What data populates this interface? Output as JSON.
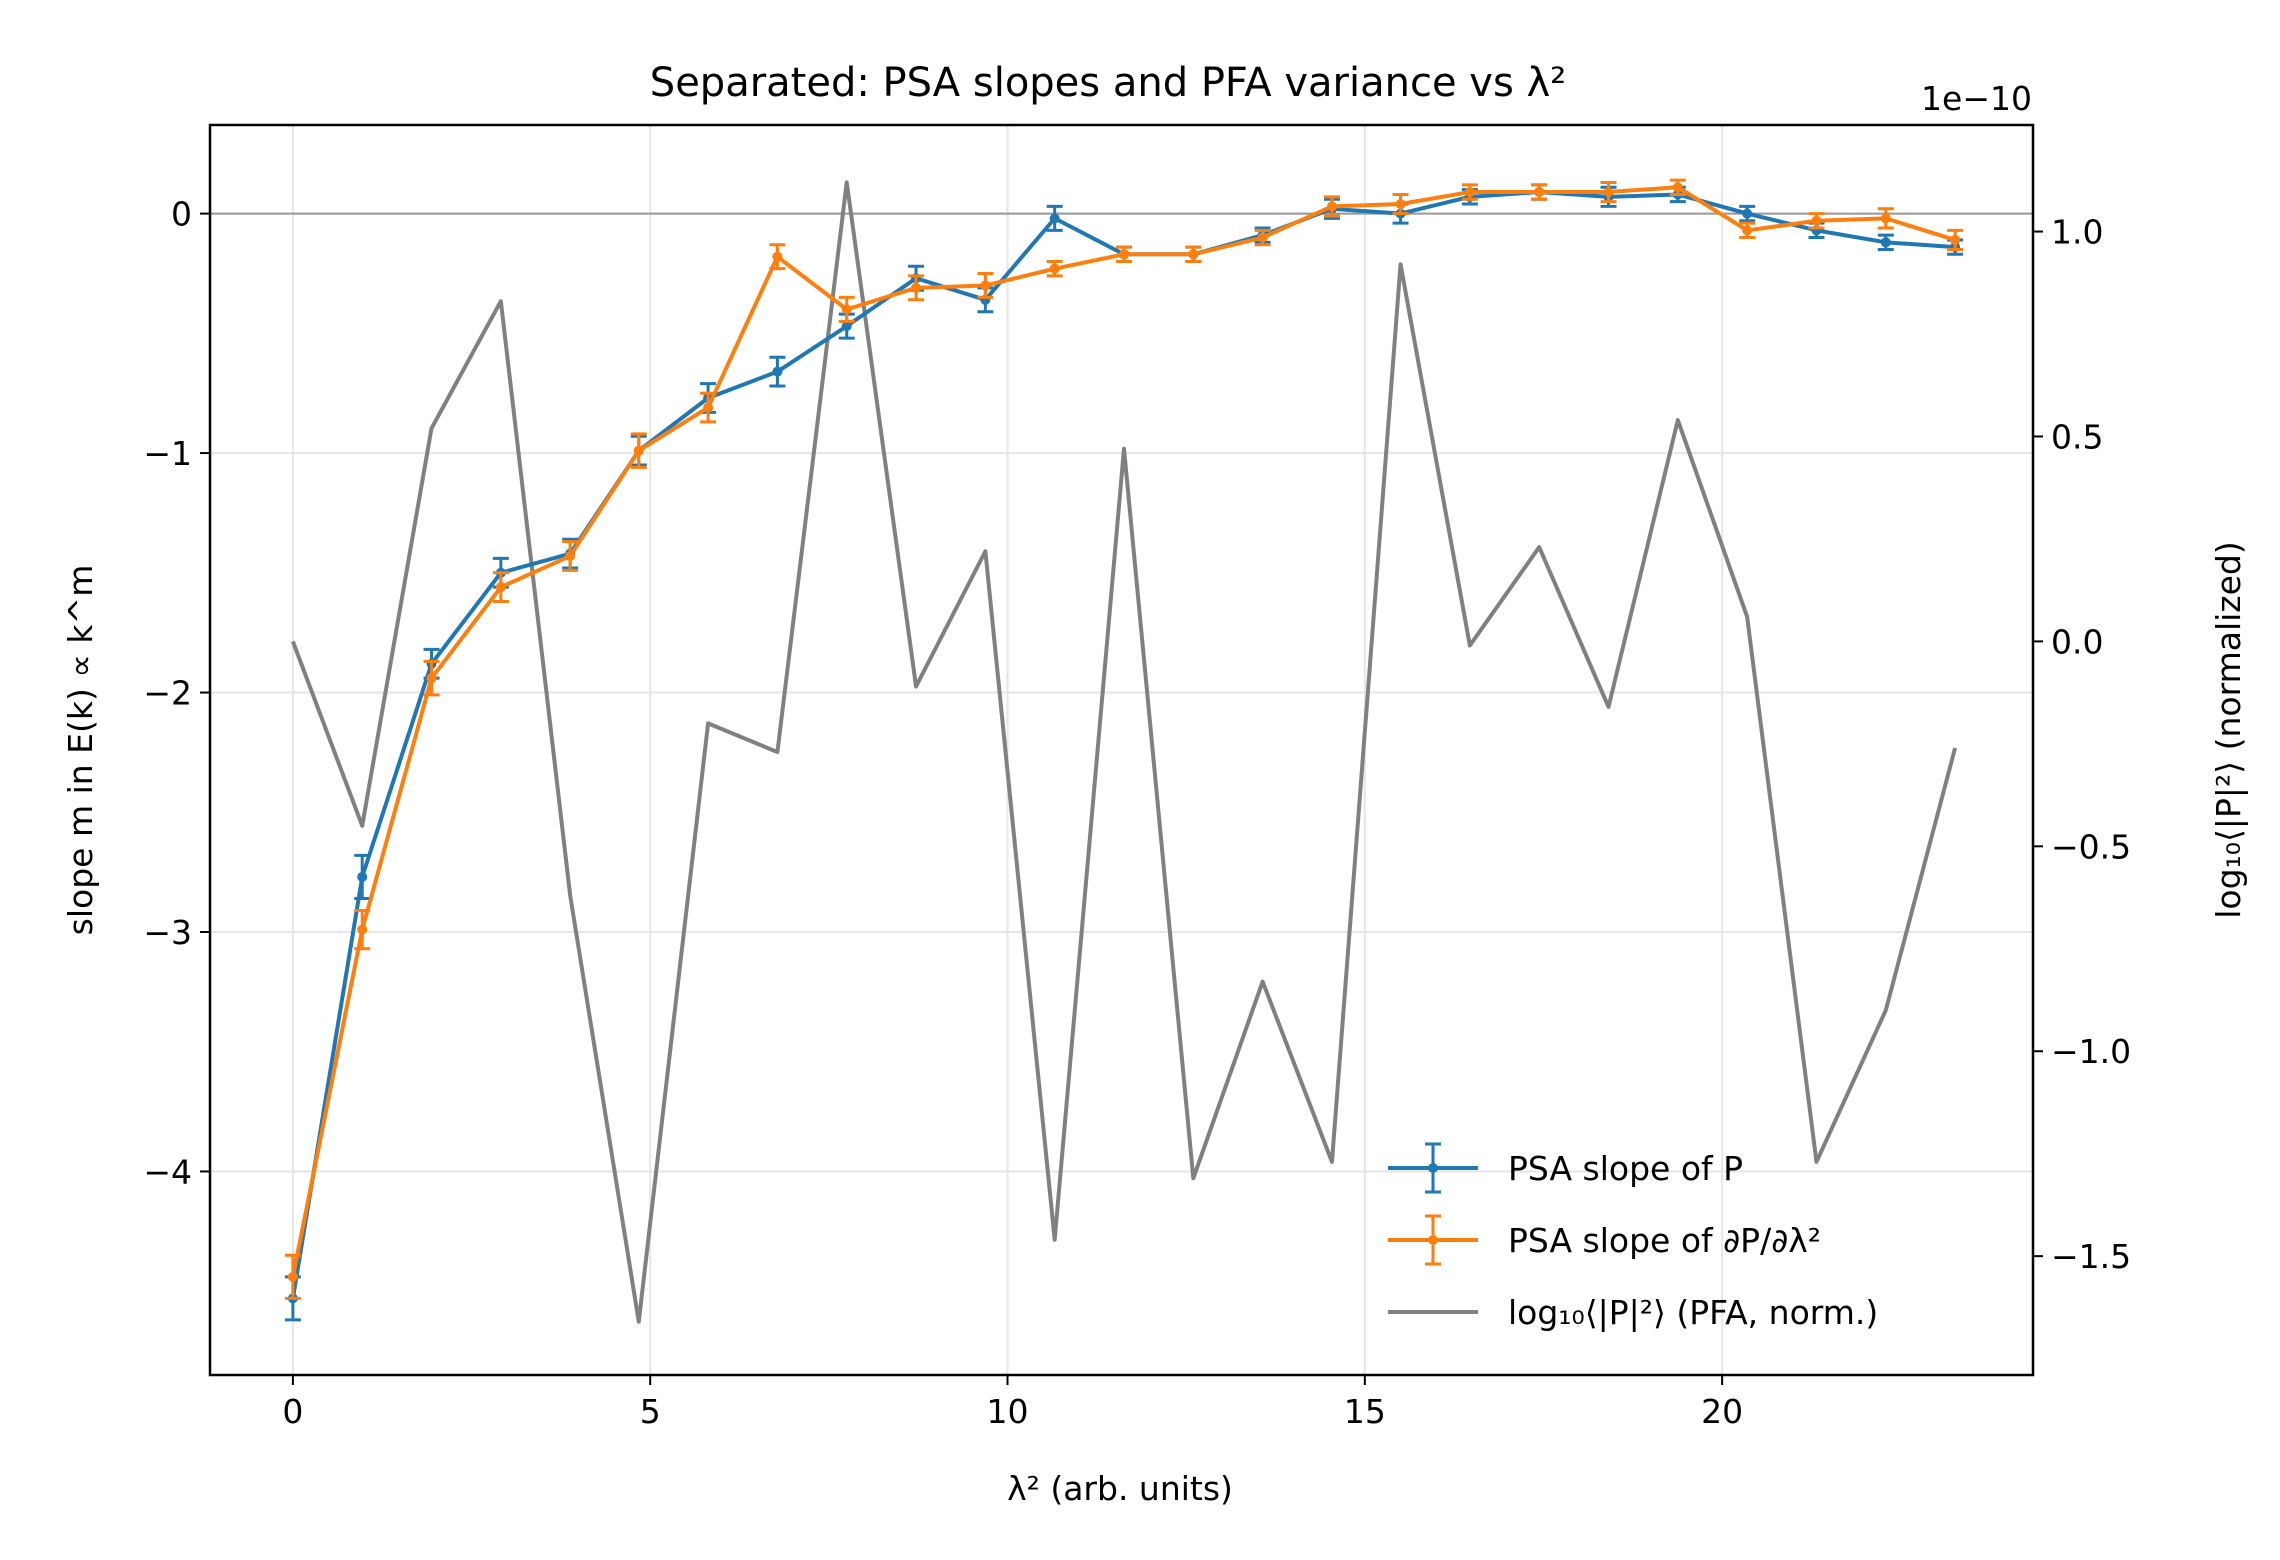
{
  "chart_data": {
    "type": "line",
    "title": "Separated: PSA slopes and PFA variance vs λ²",
    "xlabel": "λ² (arb. units)",
    "ylabel": "slope m in E(k) ∝ k^m",
    "y2label": "log₁₀⟨|P|²⟩ (normalized)",
    "y2_offset_text": "1e−10",
    "xlim": [
      -1.16,
      24.35
    ],
    "ylim": [
      -4.85,
      0.37
    ],
    "y2lim": [
      -1.79,
      1.26
    ],
    "xticks": [
      0,
      5,
      10,
      15,
      20
    ],
    "yticks": [
      0,
      -1,
      -2,
      -3,
      -4
    ],
    "ytick_labels": [
      "0",
      "−1",
      "−2",
      "−3",
      "−4"
    ],
    "y2ticks": [
      1.0,
      0.5,
      0.0,
      -0.5,
      -1.0,
      -1.5
    ],
    "y2tick_labels": [
      "1.0",
      "0.5",
      "0.0",
      "−0.5",
      "−1.0",
      "−1.5"
    ],
    "grid": true,
    "zero_line": true,
    "legend_position": "lower right",
    "x": [
      0,
      0.97,
      1.94,
      2.91,
      3.88,
      4.84,
      5.81,
      6.78,
      7.75,
      8.72,
      9.69,
      10.66,
      11.63,
      12.6,
      13.57,
      14.54,
      15.5,
      16.47,
      17.44,
      18.41,
      19.38,
      20.35,
      21.32,
      22.29,
      23.26
    ],
    "series": [
      {
        "name": "PSA slope of P",
        "axis": "left",
        "color": "#1f77b4",
        "values": [
          -4.53,
          -2.77,
          -1.88,
          -1.5,
          -1.42,
          -0.99,
          -0.77,
          -0.66,
          -0.47,
          -0.27,
          -0.36,
          -0.02,
          -0.17,
          -0.17,
          -0.09,
          0.02,
          0.0,
          0.07,
          0.09,
          0.07,
          0.08,
          0.0,
          -0.07,
          -0.12,
          -0.14
        ],
        "errors": [
          0.09,
          0.09,
          0.06,
          0.06,
          0.06,
          0.06,
          0.06,
          0.06,
          0.05,
          0.05,
          0.05,
          0.05,
          0.03,
          0.03,
          0.03,
          0.04,
          0.04,
          0.03,
          0.03,
          0.04,
          0.03,
          0.03,
          0.03,
          0.03,
          0.03
        ]
      },
      {
        "name": "PSA slope of ∂P/∂λ²",
        "axis": "left",
        "color": "#ff7f0e",
        "values": [
          -4.44,
          -2.99,
          -1.94,
          -1.56,
          -1.43,
          -0.99,
          -0.81,
          -0.18,
          -0.4,
          -0.31,
          -0.3,
          -0.23,
          -0.17,
          -0.17,
          -0.1,
          0.03,
          0.04,
          0.09,
          0.09,
          0.09,
          0.11,
          -0.07,
          -0.03,
          -0.02,
          -0.11
        ],
        "errors": [
          0.09,
          0.08,
          0.07,
          0.06,
          0.06,
          0.07,
          0.06,
          0.05,
          0.05,
          0.05,
          0.05,
          0.03,
          0.03,
          0.03,
          0.03,
          0.04,
          0.04,
          0.03,
          0.03,
          0.04,
          0.03,
          0.03,
          0.03,
          0.04,
          0.04
        ]
      },
      {
        "name": "log₁₀⟨|P|²⟩ (PFA, norm.)",
        "axis": "right",
        "color": "#808080",
        "values": [
          0.0,
          -0.45,
          0.52,
          0.83,
          -0.62,
          -1.66,
          -0.2,
          -0.27,
          1.12,
          -0.11,
          0.22,
          -1.46,
          0.47,
          -1.31,
          -0.83,
          -1.27,
          0.92,
          -0.01,
          0.23,
          -0.16,
          0.54,
          0.06,
          -1.27,
          -0.9,
          -0.26
        ]
      }
    ]
  }
}
